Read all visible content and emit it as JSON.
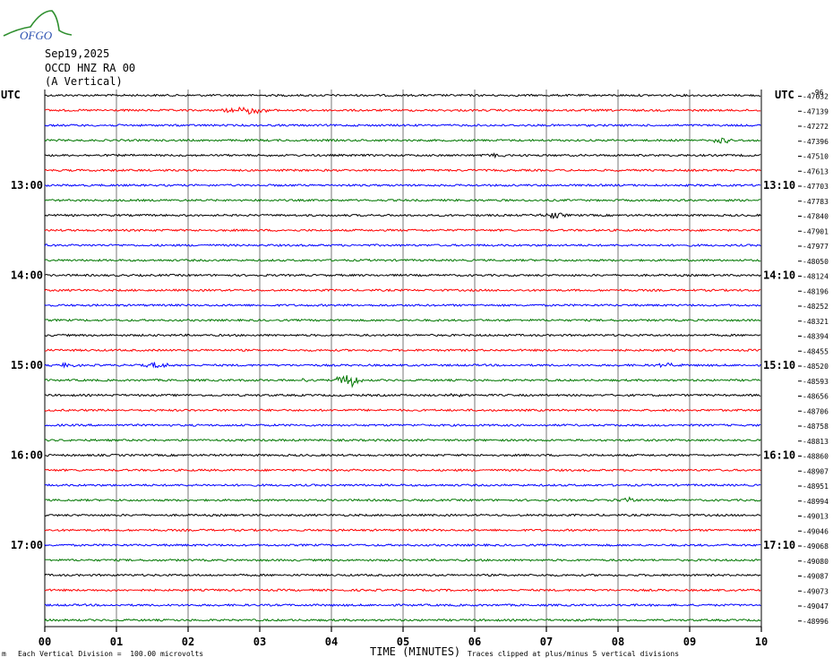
{
  "header": {
    "logo_text": "OFGO",
    "date": "Sep19,2025",
    "station": "OCCD HNZ RA 00",
    "component": "(A Vertical)"
  },
  "axis": {
    "left_utc": "UTC",
    "right_utc": "UTC",
    "x_title": "TIME (MINUTES)",
    "x_ticks": [
      "00",
      "01",
      "02",
      "03",
      "04",
      "05",
      "06",
      "07",
      "08",
      "09",
      "10"
    ]
  },
  "footer": {
    "division": "Each Vertical Division =  100.00 microvolts",
    "clipped": "Traces clipped at plus/minus 5 vertical divisions",
    "mark": "m"
  },
  "colors": {
    "trace_cycle": [
      "#000000",
      "#ff0000",
      "#0000ff",
      "#007700"
    ],
    "grid": "#000000"
  },
  "chart_data": {
    "type": "line",
    "title": "",
    "xlabel": "TIME (MINUTES)",
    "ylabel": "",
    "xlim": [
      0,
      10
    ],
    "row_interval_minutes": 10,
    "left_time_labels": [
      {
        "row": 6,
        "label": "13:00"
      },
      {
        "row": 12,
        "label": "14:00"
      },
      {
        "row": 18,
        "label": "15:00"
      },
      {
        "row": 24,
        "label": "16:00"
      },
      {
        "row": 30,
        "label": "17:00"
      }
    ],
    "right_time_labels": [
      {
        "row": 6,
        "label": "13:10"
      },
      {
        "row": 12,
        "label": "14:10"
      },
      {
        "row": 18,
        "label": "15:10"
      },
      {
        "row": 24,
        "label": "16:10"
      },
      {
        "row": 30,
        "label": "17:10"
      }
    ],
    "offset_label_top": "-96",
    "trace_offsets": [
      "-47032",
      "-47139",
      "-47272",
      "-47396",
      "-47510",
      "-47613",
      "-47703",
      "-47783",
      "-47840",
      "-47901",
      "-47977",
      "-48050",
      "-48124",
      "-48196",
      "-48252",
      "-48321",
      "-48394",
      "-48455",
      "-48520",
      "-48593",
      "-48656",
      "-48706",
      "-48758",
      "-48813",
      "-48860",
      "-48907",
      "-48951",
      "-48994",
      "-49013",
      "-49046",
      "-49068",
      "-49080",
      "-49087",
      "-49073",
      "-49047",
      "-48996"
    ],
    "events": [
      {
        "row": 1,
        "minute": 2.9,
        "amplitude": 4
      },
      {
        "row": 1,
        "minute": 2.65,
        "amplitude": 3
      },
      {
        "row": 3,
        "minute": 9.45,
        "amplitude": 3
      },
      {
        "row": 4,
        "minute": 6.3,
        "amplitude": 2
      },
      {
        "row": 8,
        "minute": 7.1,
        "amplitude": 3
      },
      {
        "row": 18,
        "minute": 1.6,
        "amplitude": 4
      },
      {
        "row": 18,
        "minute": 0.3,
        "amplitude": 2
      },
      {
        "row": 18,
        "minute": 8.7,
        "amplitude": 2
      },
      {
        "row": 19,
        "minute": 4.25,
        "amplitude": 8
      },
      {
        "row": 19,
        "minute": 3.6,
        "amplitude": 2
      },
      {
        "row": 20,
        "minute": 5.7,
        "amplitude": 2
      },
      {
        "row": 27,
        "minute": 8.15,
        "amplitude": 3
      }
    ]
  }
}
